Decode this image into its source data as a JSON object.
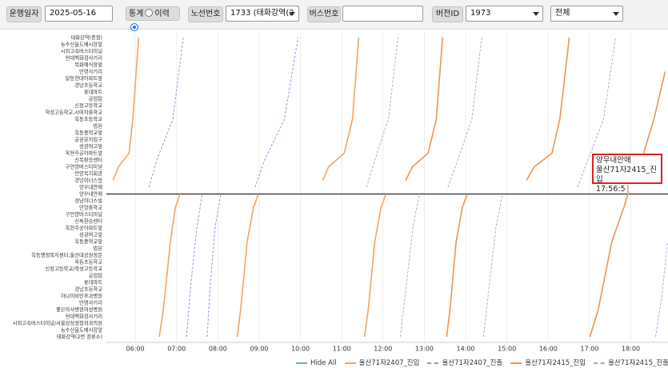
{
  "toolbar": {
    "date_label": "운행일자",
    "date": "2025-05-16",
    "mode_options": [
      "통계",
      "이력"
    ],
    "route_label": "노선번호",
    "route": "1733 (태화강역(2",
    "bus_label": "버스번호",
    "version_label": "버전ID",
    "version": "1973",
    "filter": "전체"
  },
  "chart_data": {
    "type": "line",
    "stops": [
      "태화강역(종점)",
      "농수산물도매시장앞",
      "시외고속버스터미널",
      "현대백화점사거리",
      "목화예식장앞",
      "반명사거리",
      "달동현대아파트앞",
      "경남초등학교",
      "롯데마트",
      "공업탑",
      "신정고등학교",
      "학성고등학교,서여자중학교",
      "옥동초등학교",
      "법원",
      "옥동중학교앞",
      "공원묘지입구",
      "성광여고앞",
      "옥현주공아파트앞",
      "신복환승센터",
      "구언양버스터미널",
      "언양복지회관",
      "경남이너스빌",
      "양우내안애",
      "양우내안애",
      "경남이너스빌",
      "언양중학교",
      "구언양버스터미널",
      "신복환승센터",
      "옥현주공아파트앞",
      "성광여고앞",
      "옥동중학교앞",
      "법원",
      "옥동행정복지센터,울산대공원정문",
      "옥동초등학교",
      "신정고등학교/학성고등학교",
      "공업탑",
      "롯데마트",
      "경남초등학교",
      "하나이비인후과병원",
      "반명사거리",
      "좋은아사병원여성병원",
      "현대백화점사거리",
      "시외고속버스터미널/서울삼성정형외과의원",
      "농수산물도매시장앞",
      "태화강역(2번 정류소)"
    ],
    "xlim": [
      5.3,
      18.9
    ],
    "xticks": [
      {
        "value": 6,
        "label": "06:00"
      },
      {
        "value": 7,
        "label": "07:00"
      },
      {
        "value": 8,
        "label": "08:00"
      },
      {
        "value": 9,
        "label": "09:00"
      },
      {
        "value": 10,
        "label": "10:00"
      },
      {
        "value": 11,
        "label": "11:00"
      },
      {
        "value": 12,
        "label": "12:00"
      },
      {
        "value": 13,
        "label": "13:00"
      },
      {
        "value": 14,
        "label": "14:00"
      },
      {
        "value": 15,
        "label": "15:00"
      },
      {
        "value": 16,
        "label": "16:00"
      },
      {
        "value": 17,
        "label": "17:00"
      },
      {
        "value": 18,
        "label": "18:00"
      }
    ],
    "grid": true,
    "legend_hide_all": "Hide All",
    "series": [
      {
        "name": "울산71자2407_진입",
        "color": "#f2a464",
        "dashed": false,
        "trips": [
          {
            "x": [
              5.46,
              5.59,
              5.85,
              5.94,
              6.08
            ],
            "y": [
              21,
              19,
              17,
              12,
              0
            ]
          },
          {
            "x": [
              10.54,
              10.68,
              11.06,
              11.26,
              11.41
            ],
            "y": [
              21,
              19,
              17,
              12,
              0
            ]
          },
          {
            "x": [
              6.58,
              6.68,
              6.85,
              6.97,
              7.08
            ],
            "y": [
              44,
              40,
              30,
              25,
              23
            ]
          },
          {
            "x": [
              8.47,
              8.55,
              8.71,
              8.86,
              8.98
            ],
            "y": [
              44,
              40,
              30,
              25,
              23
            ]
          },
          {
            "x": [
              11.55,
              11.64,
              11.8,
              11.95,
              12.07
            ],
            "y": [
              44,
              40,
              30,
              25,
              23
            ]
          }
        ]
      },
      {
        "name": "울산71자2407_진출",
        "color": "#8e9bd8",
        "dashed": true,
        "trips": [
          {
            "x": [
              6.33,
              6.52,
              6.91,
              7.16
            ],
            "y": [
              22,
              18,
              12,
              0
            ]
          },
          {
            "x": [
              8.9,
              9.13,
              9.61,
              9.94
            ],
            "y": [
              22,
              18,
              12,
              0
            ]
          },
          {
            "x": [
              7.24,
              7.35,
              7.49,
              7.62
            ],
            "y": [
              44,
              36,
              28,
              23
            ]
          },
          {
            "x": [
              7.74,
              7.82,
              7.93,
              8.07
            ],
            "y": [
              44,
              36,
              28,
              23
            ]
          }
        ]
      },
      {
        "name": "울산71자2415_진입",
        "color": "#ee9350",
        "dashed": false,
        "trips": [
          {
            "x": [
              12.55,
              12.71,
              13.09,
              13.29,
              13.44
            ],
            "y": [
              21,
              19,
              17,
              12,
              0
            ]
          },
          {
            "x": [
              15.47,
              15.66,
              16.09,
              16.28,
              16.51
            ],
            "y": [
              21,
              19,
              17,
              12,
              0
            ]
          },
          {
            "x": [
              18.31,
              18.56,
              18.83
            ],
            "y": [
              17,
              12,
              5
            ]
          },
          {
            "x": [
              13.54,
              13.62,
              13.77,
              13.92,
              14.04
            ],
            "y": [
              44,
              40,
              30,
              25,
              23
            ]
          },
          {
            "x": [
              17.01,
              17.21,
              17.54,
              17.83,
              17.93
            ],
            "y": [
              44,
              40,
              30,
              25,
              23
            ]
          }
        ]
      },
      {
        "name": "울산71자2415_진출",
        "color": "#b7a3d9",
        "dashed": true,
        "trips": [
          {
            "x": [
              11.6,
              11.8,
              12.13,
              12.36
            ],
            "y": [
              22,
              18,
              12,
              0
            ]
          },
          {
            "x": [
              13.57,
              13.81,
              14.15,
              14.39
            ],
            "y": [
              22,
              18,
              12,
              0
            ]
          },
          {
            "x": [
              16.71,
              16.96,
              17.34,
              17.63
            ],
            "y": [
              22,
              18,
              12,
              0
            ]
          },
          {
            "x": [
              12.42,
              12.57,
              12.72,
              12.88
            ],
            "y": [
              44,
              36,
              28,
              23
            ]
          },
          {
            "x": [
              14.43,
              14.58,
              14.73,
              14.89
            ],
            "y": [
              44,
              36,
              28,
              23
            ]
          },
          {
            "x": [
              18.6,
              18.75,
              18.89
            ],
            "y": [
              44,
              38,
              30
            ]
          }
        ]
      }
    ],
    "tooltip": {
      "title": "양우내안애",
      "series": "울산71자2415_진입",
      "time": "17:56:5"
    }
  }
}
